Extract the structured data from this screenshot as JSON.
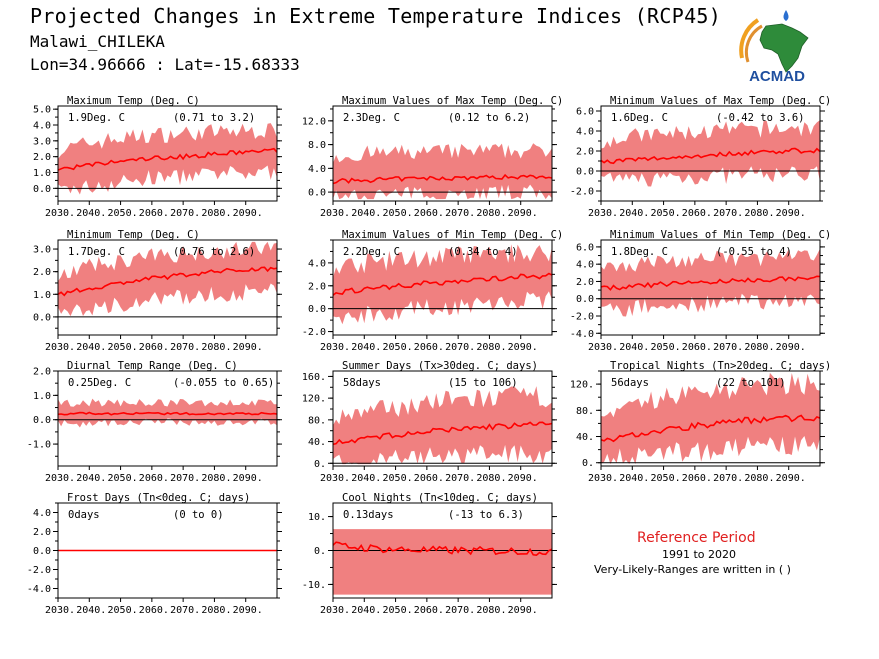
{
  "header": {
    "title": "Projected Changes in Extreme Temperature Indices (RCP45)",
    "station": "Malawi_CHILEKA",
    "coords": "Lon=34.96666 : Lat=-15.68333"
  },
  "logo": {
    "text": "ACMAD",
    "icon": "africa-map-logo"
  },
  "reference": {
    "title": "Reference Period",
    "period": "1991 to 2020",
    "note": "Very-Likely-Ranges are written in ( )"
  },
  "colors": {
    "band": "#f08080",
    "line": "#ff0000",
    "title": "#e02020"
  },
  "chart_data": [
    {
      "type": "area",
      "title": "Maximum Temp (Deg. C)",
      "mean_label": "1.9Deg. C",
      "range_label": "(0.71 to 3.2)",
      "x": [
        2030,
        2100
      ],
      "ylim": [
        -0.8,
        5.2
      ],
      "yticks": [
        0,
        1,
        2,
        3,
        4,
        5
      ],
      "ytick_labels": [
        "0.0",
        "1.0",
        "2.0",
        "3.0",
        "4.0",
        "5.0"
      ],
      "xtick_labels": [
        "2030.",
        "2040.",
        "2050.",
        "2060.",
        "2070.",
        "2080.",
        "2090."
      ],
      "mean_series": [
        1.2,
        1.45,
        1.7,
        1.9,
        2.0,
        2.15,
        2.3,
        2.4
      ],
      "lower_series": [
        0.0,
        0.25,
        0.55,
        0.8,
        0.9,
        1.0,
        1.1,
        1.2
      ],
      "upper_series": [
        2.2,
        2.7,
        3.0,
        3.2,
        3.3,
        3.4,
        3.45,
        3.5
      ]
    },
    {
      "type": "area",
      "title": "Maximum Values of Max Temp (Deg. C)",
      "mean_label": "2.3Deg. C",
      "range_label": "(0.12 to 6.2)",
      "x": [
        2030,
        2100
      ],
      "ylim": [
        -1.5,
        14.5
      ],
      "yticks": [
        0,
        4,
        8,
        12
      ],
      "ytick_labels": [
        "0.0",
        "4.0",
        "8.0",
        "12.0"
      ],
      "xtick_labels": [
        "2030.",
        "2040.",
        "2050.",
        "2060.",
        "2070.",
        "2080.",
        "2090."
      ],
      "mean_series": [
        1.8,
        2.0,
        2.2,
        2.3,
        2.4,
        2.5,
        2.6,
        2.7
      ],
      "lower_series": [
        -0.5,
        -0.3,
        0.0,
        0.1,
        0.2,
        0.3,
        0.4,
        0.4
      ],
      "upper_series": [
        5.5,
        6.0,
        6.2,
        6.3,
        6.4,
        6.5,
        6.5,
        6.6
      ]
    },
    {
      "type": "area",
      "title": "Minimum Values of Max Temp (Deg. C)",
      "mean_label": "1.6Deg. C",
      "range_label": "(-0.42 to 3.6)",
      "x": [
        2030,
        2100
      ],
      "ylim": [
        -3.0,
        6.5
      ],
      "yticks": [
        -2,
        0,
        2,
        4,
        6
      ],
      "ytick_labels": [
        "-2.0",
        "0.0",
        "2.0",
        "4.0",
        "6.0"
      ],
      "xtick_labels": [
        "2030.",
        "2040.",
        "2050.",
        "2060.",
        "2070.",
        "2080.",
        "2090."
      ],
      "mean_series": [
        0.9,
        1.1,
        1.3,
        1.5,
        1.7,
        1.9,
        2.0,
        2.1
      ],
      "lower_series": [
        -0.8,
        -0.6,
        -0.4,
        -0.3,
        -0.2,
        -0.1,
        0.0,
        0.0
      ],
      "upper_series": [
        2.8,
        3.2,
        3.4,
        3.6,
        3.8,
        3.9,
        4.0,
        4.0
      ]
    },
    {
      "type": "area",
      "title": "Minimum Temp (Deg. C)",
      "mean_label": "1.7Deg. C",
      "range_label": "(0.76 to 2.6)",
      "x": [
        2030,
        2100
      ],
      "ylim": [
        -0.8,
        3.4
      ],
      "yticks": [
        0,
        1,
        2,
        3
      ],
      "ytick_labels": [
        "0.0",
        "1.0",
        "2.0",
        "3.0"
      ],
      "xtick_labels": [
        "2030.",
        "2040.",
        "2050.",
        "2060.",
        "2070.",
        "2080.",
        "2090."
      ],
      "mean_series": [
        1.0,
        1.25,
        1.5,
        1.7,
        1.85,
        2.0,
        2.1,
        2.15
      ],
      "lower_series": [
        0.2,
        0.45,
        0.7,
        0.85,
        1.0,
        1.1,
        1.2,
        1.25
      ],
      "upper_series": [
        1.8,
        2.1,
        2.35,
        2.55,
        2.7,
        2.8,
        2.9,
        2.95
      ]
    },
    {
      "type": "area",
      "title": "Maximum Values of Min Temp (Deg. C)",
      "mean_label": "2.2Deg. C",
      "range_label": "(0.34 to 4)",
      "x": [
        2030,
        2100
      ],
      "ylim": [
        -2.3,
        6.0
      ],
      "yticks": [
        -2,
        0,
        2,
        4
      ],
      "ytick_labels": [
        "-2.0",
        "0.0",
        "2.0",
        "4.0"
      ],
      "xtick_labels": [
        "2030.",
        "2040.",
        "2050.",
        "2060.",
        "2070.",
        "2080.",
        "2090."
      ],
      "mean_series": [
        1.4,
        1.7,
        2.0,
        2.2,
        2.4,
        2.6,
        2.8,
        2.9
      ],
      "lower_series": [
        -0.5,
        -0.2,
        0.1,
        0.3,
        0.5,
        0.7,
        0.9,
        1.0
      ],
      "upper_series": [
        3.3,
        3.7,
        4.0,
        4.2,
        4.4,
        4.5,
        4.6,
        4.7
      ]
    },
    {
      "type": "area",
      "title": "Minimum Values of Min Temp (Deg. C)",
      "mean_label": "1.8Deg. C",
      "range_label": "(-0.55 to 4)",
      "x": [
        2030,
        2100
      ],
      "ylim": [
        -4.2,
        6.8
      ],
      "yticks": [
        -4,
        -2,
        0,
        2,
        4,
        6
      ],
      "ytick_labels": [
        "-4.0",
        "-2.0",
        "0.0",
        "2.0",
        "4.0",
        "6.0"
      ],
      "xtick_labels": [
        "2030.",
        "2040.",
        "2050.",
        "2060.",
        "2070.",
        "2080.",
        "2090."
      ],
      "mean_series": [
        1.2,
        1.4,
        1.7,
        1.9,
        2.0,
        2.2,
        2.3,
        2.4
      ],
      "lower_series": [
        -1.0,
        -0.8,
        -0.5,
        -0.3,
        -0.2,
        0.0,
        0.1,
        0.2
      ],
      "upper_series": [
        3.4,
        3.7,
        4.0,
        4.2,
        4.3,
        4.4,
        4.5,
        4.6
      ]
    },
    {
      "type": "area",
      "title": "Diurnal Temp Range (Deg. C)",
      "mean_label": "0.25Deg. C",
      "range_label": "(-0.055 to 0.65)",
      "x": [
        2030,
        2100
      ],
      "ylim": [
        -1.9,
        2.0
      ],
      "yticks": [
        -1,
        0,
        1,
        2
      ],
      "ytick_labels": [
        "-1.0",
        "0.0",
        "1.0",
        "2.0"
      ],
      "xtick_labels": [
        "2030.",
        "2040.",
        "2050.",
        "2060.",
        "2070.",
        "2080.",
        "2090."
      ],
      "mean_series": [
        0.25,
        0.25,
        0.25,
        0.25,
        0.25,
        0.25,
        0.25,
        0.25
      ],
      "lower_series": [
        -0.1,
        -0.1,
        -0.05,
        -0.05,
        -0.05,
        -0.05,
        -0.05,
        -0.05
      ],
      "upper_series": [
        0.65,
        0.65,
        0.65,
        0.65,
        0.65,
        0.65,
        0.65,
        0.65
      ]
    },
    {
      "type": "area",
      "title": "Summer Days (Tx>30deg. C; days)",
      "mean_label": "58days",
      "range_label": "(15 to 106)",
      "x": [
        2030,
        2100
      ],
      "ylim": [
        -5,
        170
      ],
      "yticks": [
        0,
        40,
        80,
        120,
        160
      ],
      "ytick_labels": [
        "0.",
        "40.",
        "80.",
        "120.",
        "160."
      ],
      "xtick_labels": [
        "2030.",
        "2040.",
        "2050.",
        "2060.",
        "2070.",
        "2080.",
        "2090."
      ],
      "mean_series": [
        38,
        45,
        52,
        58,
        63,
        67,
        70,
        72
      ],
      "lower_series": [
        5,
        10,
        14,
        17,
        20,
        22,
        24,
        25
      ],
      "upper_series": [
        75,
        88,
        98,
        106,
        110,
        114,
        116,
        118
      ]
    },
    {
      "type": "area",
      "title": "Tropical Nights (Tn>20deg. C; days)",
      "mean_label": "56days",
      "range_label": "(22 to 101)",
      "x": [
        2030,
        2100
      ],
      "ylim": [
        -5,
        140
      ],
      "yticks": [
        0,
        40,
        80,
        120
      ],
      "ytick_labels": [
        "0.",
        "40.",
        "80.",
        "120."
      ],
      "xtick_labels": [
        "2030.",
        "2040.",
        "2050.",
        "2060.",
        "2070.",
        "2080.",
        "2090."
      ],
      "mean_series": [
        32,
        42,
        50,
        56,
        62,
        66,
        68,
        70
      ],
      "lower_series": [
        10,
        15,
        20,
        23,
        26,
        28,
        30,
        30
      ],
      "upper_series": [
        60,
        80,
        95,
        102,
        108,
        112,
        115,
        118
      ]
    },
    {
      "type": "area",
      "title": "Frost Days (Tn<0deg. C; days)",
      "mean_label": "0days",
      "range_label": "(0 to 0)",
      "x": [
        2030,
        2100
      ],
      "ylim": [
        -5,
        5
      ],
      "yticks": [
        -4,
        -2,
        0,
        2,
        4
      ],
      "ytick_labels": [
        "-4.0",
        "-2.0",
        "0.0",
        "2.0",
        "4.0"
      ],
      "xtick_labels": [
        "2030.",
        "2040.",
        "2050.",
        "2060.",
        "2070.",
        "2080.",
        "2090."
      ],
      "mean_series": [
        0,
        0,
        0,
        0,
        0,
        0,
        0,
        0
      ],
      "lower_series": [
        0,
        0,
        0,
        0,
        0,
        0,
        0,
        0
      ],
      "upper_series": [
        0,
        0,
        0,
        0,
        0,
        0,
        0,
        0
      ]
    },
    {
      "type": "area",
      "title": "Cool Nights (Tn<10deg. C; days)",
      "mean_label": "0.13days",
      "range_label": "(-13 to 6.3)",
      "x": [
        2030,
        2100
      ],
      "ylim": [
        -14,
        14
      ],
      "yticks": [
        -10,
        0,
        10
      ],
      "ytick_labels": [
        "-10.",
        "0.",
        "10."
      ],
      "xtick_labels": [
        "2030.",
        "2040.",
        "2050.",
        "2060.",
        "2070.",
        "2080.",
        "2090."
      ],
      "mean_series": [
        1.5,
        0.8,
        0.3,
        0.1,
        0.0,
        -0.1,
        -0.2,
        -0.3
      ],
      "lower_series": [
        -13,
        -13,
        -13,
        -13,
        -13,
        -13,
        -13,
        -13
      ],
      "upper_series": [
        6.3,
        6.3,
        6.3,
        6.3,
        6.3,
        6.3,
        6.3,
        6.3
      ]
    }
  ]
}
